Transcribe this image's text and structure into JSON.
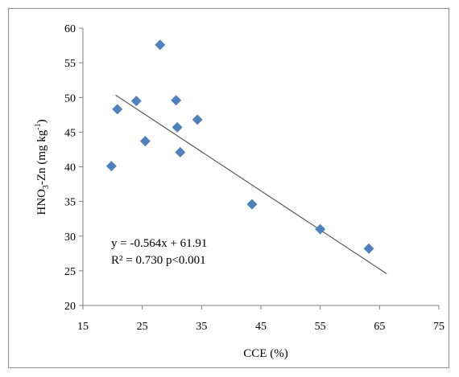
{
  "chart_data": {
    "type": "scatter",
    "title": "",
    "xlabel": "CCE (%)",
    "ylabel_main": "HNO",
    "ylabel_sub3": "3",
    "ylabel_mid": "-Zn (mg kg",
    "ylabel_sup": "-1",
    "ylabel_end": ")",
    "xlim": [
      15,
      75
    ],
    "ylim": [
      20,
      60
    ],
    "x_ticks": [
      "15",
      "25",
      "35",
      "45",
      "55",
      "65",
      "75"
    ],
    "y_ticks": [
      "20",
      "25",
      "30",
      "35",
      "40",
      "45",
      "50",
      "55",
      "60"
    ],
    "grid": false,
    "legend": "none",
    "marker": "diamond",
    "marker_color": "#4f81bd",
    "series": [
      {
        "x": [
          28.0,
          19.8,
          20.8,
          24.0,
          25.5,
          30.7,
          30.9,
          31.4,
          34.3,
          43.5,
          55.0,
          63.2
        ],
        "y": [
          57.6,
          40.1,
          48.3,
          49.5,
          43.7,
          49.6,
          45.7,
          42.1,
          46.8,
          34.6,
          31.0,
          28.2
        ]
      }
    ],
    "trendline": {
      "slope": -0.564,
      "intercept": 61.91,
      "x_range": [
        20.5,
        66.2
      ],
      "color": "#5a5a5a"
    },
    "annotations": {
      "equation": "y = -0.564x + 61.91",
      "r2": "R² = 0.730   p<0.001"
    }
  }
}
